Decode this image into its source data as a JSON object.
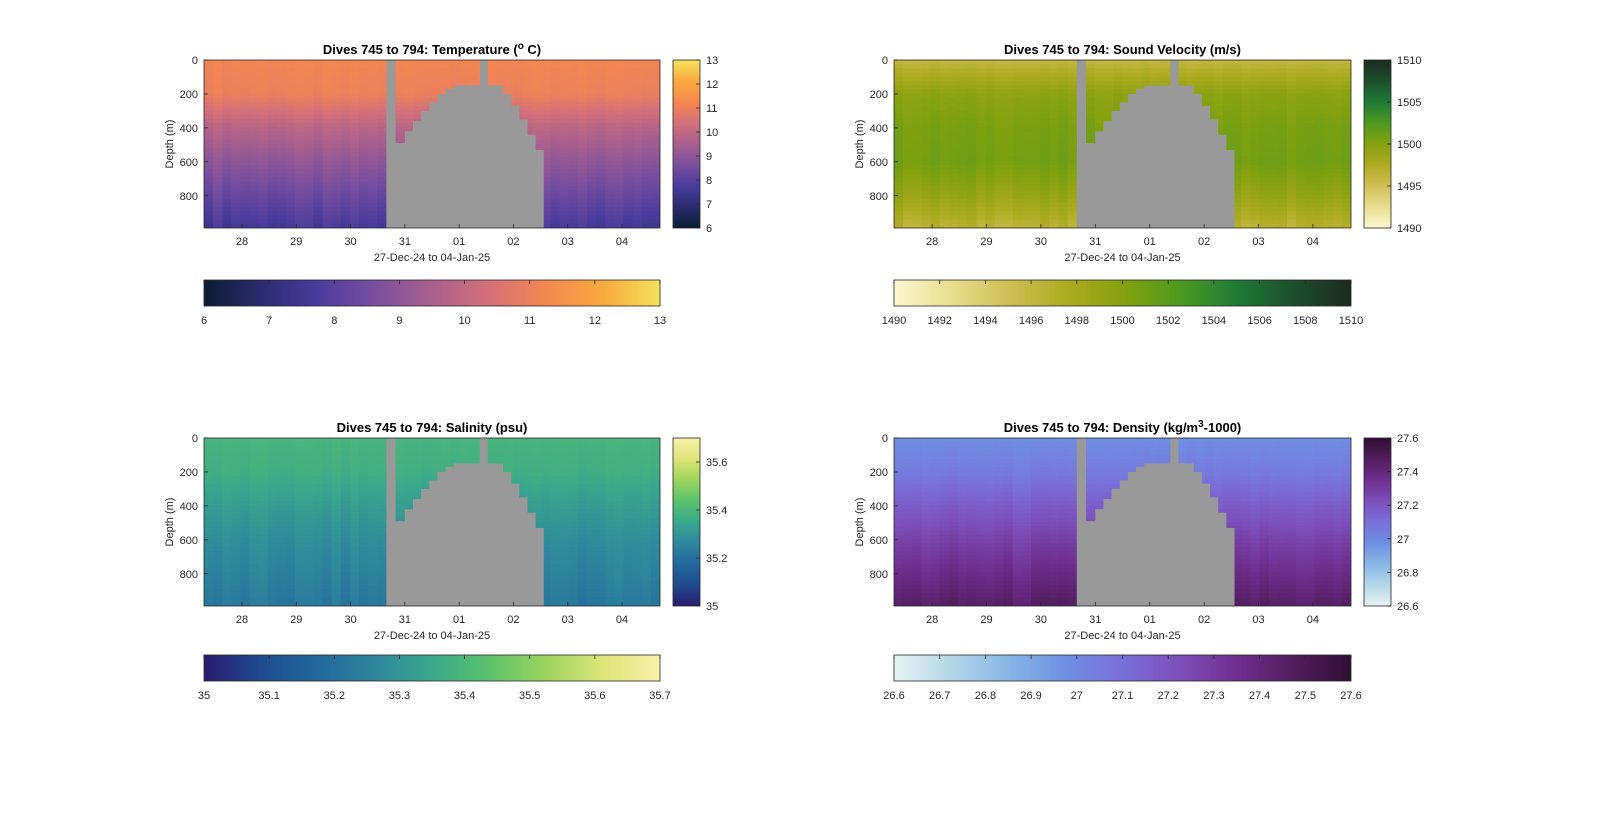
{
  "figure": {
    "xlabel": "27-Dec-24 to 04-Jan-25",
    "ylabel": "Depth (m)",
    "x_ticks": [
      "28",
      "29",
      "30",
      "31",
      "01",
      "02",
      "03",
      "04"
    ],
    "x_tick_days": [
      1,
      2,
      3,
      4,
      5,
      6,
      7,
      8
    ],
    "x_range_days": [
      0.3,
      8.7
    ],
    "y_ticks": [
      0,
      200,
      400,
      600,
      800
    ],
    "y_range": [
      0,
      990
    ],
    "gap_color": "#999999",
    "gap_profile": {
      "note_units": "x in days since 27-Dec-24 00:00 boundary index, depth in m",
      "segments": [
        {
          "x0": 3.66,
          "x1": 3.82,
          "top": 0
        },
        {
          "x0": 3.82,
          "x1": 4.0,
          "top": 490
        },
        {
          "x0": 4.0,
          "x1": 4.15,
          "top": 420
        },
        {
          "x0": 4.15,
          "x1": 4.3,
          "top": 360
        },
        {
          "x0": 4.3,
          "x1": 4.45,
          "top": 300
        },
        {
          "x0": 4.45,
          "x1": 4.6,
          "top": 250
        },
        {
          "x0": 4.6,
          "x1": 4.75,
          "top": 200
        },
        {
          "x0": 4.75,
          "x1": 4.9,
          "top": 170
        },
        {
          "x0": 4.9,
          "x1": 5.2,
          "top": 150
        },
        {
          "x0": 5.2,
          "x1": 5.38,
          "top": 150
        },
        {
          "x0": 5.38,
          "x1": 5.52,
          "top": 0
        },
        {
          "x0": 5.52,
          "x1": 5.8,
          "top": 150
        },
        {
          "x0": 5.8,
          "x1": 5.95,
          "top": 200
        },
        {
          "x0": 5.95,
          "x1": 6.1,
          "top": 270
        },
        {
          "x0": 6.1,
          "x1": 6.25,
          "top": 350
        },
        {
          "x0": 6.25,
          "x1": 6.4,
          "top": 440
        },
        {
          "x0": 6.4,
          "x1": 6.55,
          "top": 530
        }
      ]
    }
  },
  "chart_data": [
    {
      "type": "heatmap",
      "title": "Dives 745 to 794: Temperature (°C)",
      "title_parts": [
        "Dives 745 to 794: Temperature (",
        "o",
        " C)"
      ],
      "xlabel": "27-Dec-24 to 04-Jan-25",
      "ylabel": "Depth (m)",
      "ylim": [
        0,
        990
      ],
      "colorbar_right": {
        "min": 6,
        "max": 13,
        "ticks": [
          6,
          7,
          8,
          9,
          10,
          11,
          12,
          13
        ]
      },
      "colorbar_bottom": {
        "min": 6,
        "max": 13,
        "ticks": [
          "6",
          "7",
          "8",
          "9",
          "10",
          "11",
          "12",
          "13"
        ]
      },
      "colormap": [
        "#0b1c33",
        "#2b2b6e",
        "#4a3c9e",
        "#7a4f9e",
        "#a9608d",
        "#d4707a",
        "#f5874f",
        "#f9a93e",
        "#f4e25c"
      ],
      "depth_profile": [
        {
          "depth": 0,
          "value": 11.2
        },
        {
          "depth": 200,
          "value": 11.0
        },
        {
          "depth": 400,
          "value": 9.8
        },
        {
          "depth": 600,
          "value": 9.0
        },
        {
          "depth": 800,
          "value": 8.3
        },
        {
          "depth": 990,
          "value": 7.6
        }
      ]
    },
    {
      "type": "heatmap",
      "title": "Dives 745 to 794: Sound Velocity (m/s)",
      "title_parts": [
        "Dives 745 to 794: Sound Velocity (m/s)",
        "",
        ""
      ],
      "xlabel": "27-Dec-24 to 04-Jan-25",
      "ylabel": "Depth (m)",
      "ylim": [
        0,
        990
      ],
      "colorbar_right": {
        "min": 1490,
        "max": 1510,
        "ticks": [
          1490,
          1495,
          1500,
          1505,
          1510
        ]
      },
      "colorbar_bottom": {
        "min": 1490,
        "max": 1510,
        "ticks": [
          "1490",
          "1492",
          "1494",
          "1496",
          "1498",
          "1500",
          "1502",
          "1504",
          "1506",
          "1508",
          "1510"
        ]
      },
      "colormap": [
        "#fdf7d0",
        "#e9de8f",
        "#cfbf55",
        "#aeab22",
        "#85a10f",
        "#4e9a20",
        "#1f7a36",
        "#1d4d2c",
        "#1b2a20"
      ],
      "depth_profile": [
        {
          "depth": 0,
          "value": 1496.0
        },
        {
          "depth": 200,
          "value": 1499.5
        },
        {
          "depth": 400,
          "value": 1500.5
        },
        {
          "depth": 600,
          "value": 1500.8
        },
        {
          "depth": 800,
          "value": 1499.0
        },
        {
          "depth": 990,
          "value": 1496.5
        }
      ]
    },
    {
      "type": "heatmap",
      "title": "Dives 745 to 794: Salinity (psu)",
      "title_parts": [
        "Dives 745 to 794: Salinity (psu)",
        "",
        ""
      ],
      "xlabel": "27-Dec-24 to 04-Jan-25",
      "ylabel": "Depth (m)",
      "ylim": [
        0,
        990
      ],
      "colorbar_right": {
        "min": 35,
        "max": 35.7,
        "ticks": [
          35,
          35.2,
          35.4,
          35.6
        ]
      },
      "colorbar_bottom": {
        "min": 35,
        "max": 35.7,
        "ticks": [
          "35",
          "35.1",
          "35.2",
          "35.3",
          "35.4",
          "35.5",
          "35.6",
          "35.7"
        ]
      },
      "colormap": [
        "#2a1a6e",
        "#1f4b8f",
        "#22689c",
        "#2e869d",
        "#3ba88b",
        "#5ac26c",
        "#9dd45e",
        "#dde57a",
        "#f9f0a8"
      ],
      "depth_profile": [
        {
          "depth": 0,
          "value": 35.39
        },
        {
          "depth": 200,
          "value": 35.37
        },
        {
          "depth": 400,
          "value": 35.32
        },
        {
          "depth": 600,
          "value": 35.28
        },
        {
          "depth": 800,
          "value": 35.25
        },
        {
          "depth": 990,
          "value": 35.22
        }
      ]
    },
    {
      "type": "heatmap",
      "title": "Dives 745 to 794: Density (kg/m3-1000)",
      "title_parts": [
        "Dives 745 to 794: Density (kg/m",
        "3",
        "-1000)"
      ],
      "xlabel": "27-Dec-24 to 04-Jan-25",
      "ylabel": "Depth (m)",
      "ylim": [
        0,
        990
      ],
      "colorbar_right": {
        "min": 26.6,
        "max": 27.6,
        "ticks": [
          "26.6",
          "26.8",
          "27",
          "27.2",
          "27.4",
          "27.6"
        ]
      },
      "colorbar_bottom": {
        "min": 26.6,
        "max": 27.6,
        "ticks": [
          "26.6",
          "26.7",
          "26.8",
          "26.9",
          "27",
          "27.1",
          "27.2",
          "27.3",
          "27.4",
          "27.5",
          "27.6"
        ]
      },
      "colormap": [
        "#e8f3f2",
        "#b3d6e8",
        "#88b6e6",
        "#6f8fe3",
        "#7a6fd8",
        "#7d4fbb",
        "#6e2e8e",
        "#521d5d",
        "#2f0f33"
      ],
      "depth_profile": [
        {
          "depth": 0,
          "value": 26.98
        },
        {
          "depth": 200,
          "value": 27.05
        },
        {
          "depth": 400,
          "value": 27.17
        },
        {
          "depth": 600,
          "value": 27.27
        },
        {
          "depth": 800,
          "value": 27.36
        },
        {
          "depth": 990,
          "value": 27.45
        }
      ]
    }
  ]
}
